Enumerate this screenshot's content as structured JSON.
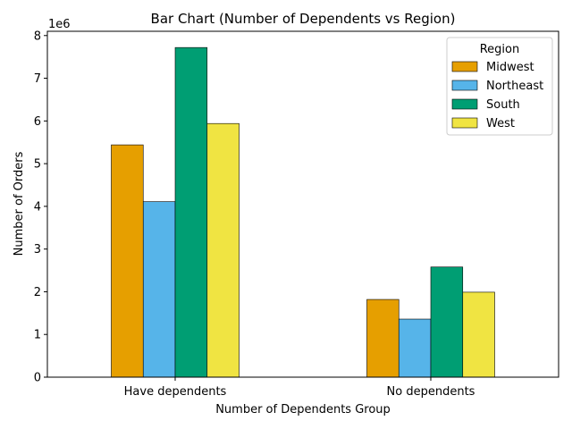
{
  "chart_data": {
    "type": "bar",
    "title": "Bar Chart (Number of Dependents vs Region)",
    "xlabel": "Number of Dependents Group",
    "ylabel": "Number of Orders",
    "y_offset_label": "1e6",
    "categories": [
      "Have dependents",
      "No dependents"
    ],
    "series": [
      {
        "name": "Midwest",
        "color": "#E69F00",
        "values": [
          5440000,
          1820000
        ]
      },
      {
        "name": "Northeast",
        "color": "#56B4E9",
        "values": [
          4110000,
          1360000
        ]
      },
      {
        "name": "South",
        "color": "#009E73",
        "values": [
          7720000,
          2580000
        ]
      },
      {
        "name": "West",
        "color": "#F0E442",
        "values": [
          5940000,
          1990000
        ]
      }
    ],
    "ylim": [
      0,
      8100000
    ],
    "yticks": [
      0,
      1000000,
      2000000,
      3000000,
      4000000,
      5000000,
      6000000,
      7000000,
      8000000
    ],
    "ytick_labels": [
      "0",
      "1",
      "2",
      "3",
      "4",
      "5",
      "6",
      "7",
      "8"
    ],
    "legend": {
      "title": "Region",
      "position": "top-right"
    },
    "grid": false
  }
}
